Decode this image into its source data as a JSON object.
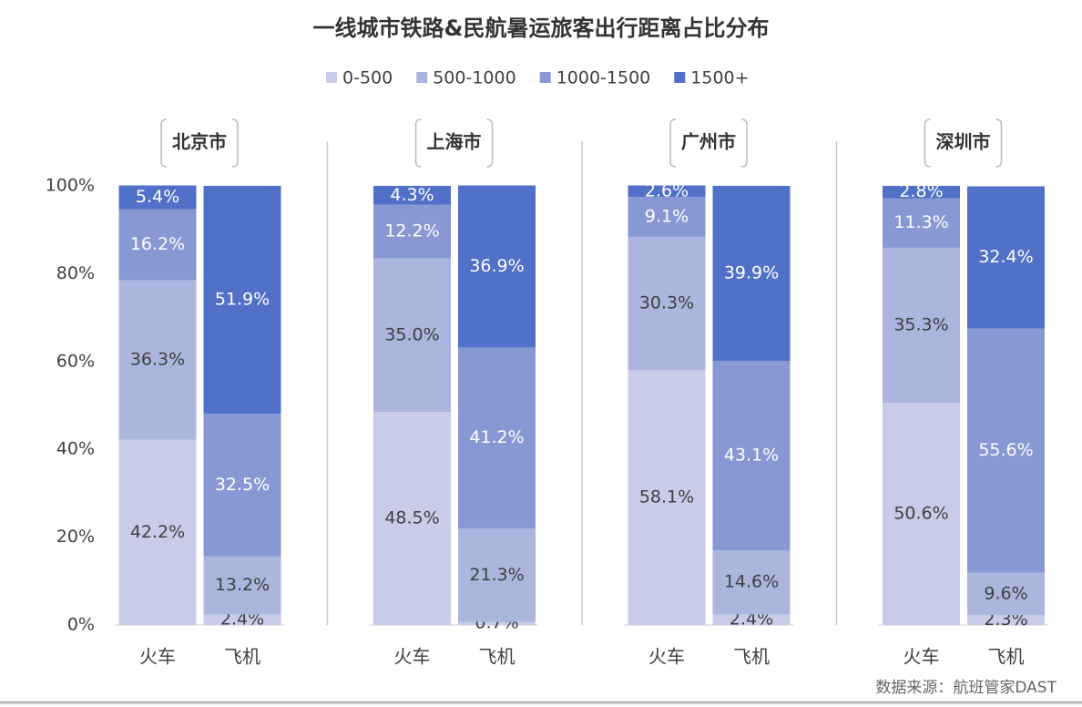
{
  "chart_data": {
    "type": "stacked_bar",
    "title": "一线城市铁路&民航暑运旅客出行距离占比分布",
    "source": "数据来源：航班管家DAST",
    "groups": [
      "北京市",
      "上海市",
      "广州市",
      "深圳市"
    ],
    "categories": [
      "火车",
      "飞机",
      "火车",
      "飞机",
      "火车",
      "飞机",
      "火车",
      "飞机"
    ],
    "series": [
      {
        "name": "0-500",
        "color": "#c8cce9",
        "values": [
          42.2,
          2.4,
          48.5,
          0.7,
          58.1,
          2.4,
          50.6,
          2.3
        ],
        "value_labels": [
          "42.2%",
          "2.4%",
          "48.5%",
          "0.7%",
          "58.1%",
          "2.4%",
          "50.6%",
          "2.3%"
        ]
      },
      {
        "name": "500-1000",
        "color": "#abb5dd",
        "values": [
          36.3,
          13.2,
          35.0,
          21.3,
          30.3,
          14.6,
          35.3,
          9.6
        ],
        "value_labels": [
          "36.3%",
          "13.2%",
          "35.0%",
          "21.3%",
          "30.3%",
          "14.6%",
          "35.3%",
          "9.6%"
        ]
      },
      {
        "name": "1000-1500",
        "color": "#8898d2",
        "values": [
          16.2,
          32.5,
          12.2,
          41.2,
          9.1,
          43.1,
          11.3,
          55.6
        ],
        "value_labels": [
          "16.2%",
          "32.5%",
          "12.2%",
          "41.2%",
          "9.1%",
          "43.1%",
          "11.3%",
          "55.6%"
        ]
      },
      {
        "name": "1500+",
        "color": "#5170c7",
        "values": [
          5.4,
          51.9,
          4.3,
          36.9,
          2.6,
          39.9,
          2.8,
          32.4
        ],
        "value_labels": [
          "5.4%",
          "51.9%",
          "4.3%",
          "36.9%",
          "2.6%",
          "39.9%",
          "2.8%",
          "32.4%"
        ]
      }
    ],
    "ylim": [
      0,
      100
    ],
    "yticks": [
      {
        "value": 0,
        "label": "0%"
      },
      {
        "value": 20,
        "label": "20%"
      },
      {
        "value": 40,
        "label": "40%"
      },
      {
        "value": 60,
        "label": "60%"
      },
      {
        "value": 80,
        "label": "80%"
      },
      {
        "value": 100,
        "label": "100%"
      }
    ]
  }
}
